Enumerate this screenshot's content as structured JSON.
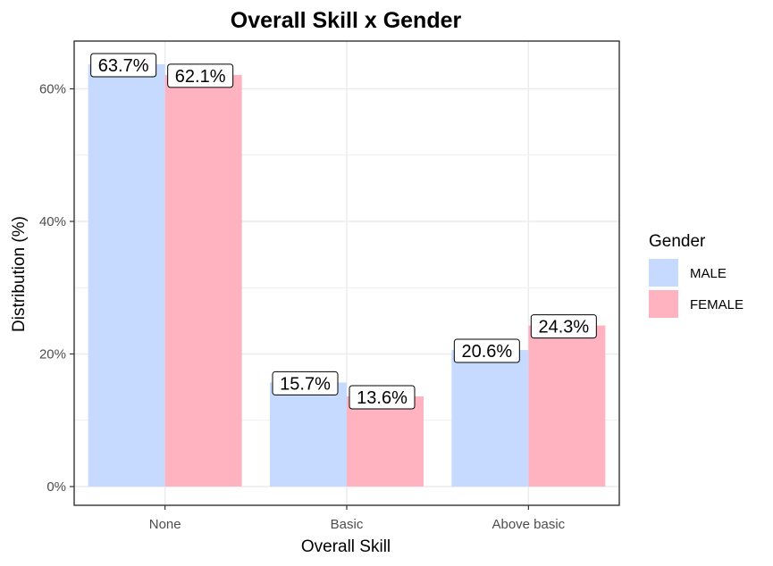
{
  "chart_data": {
    "type": "bar",
    "title": "Overall Skill x Gender",
    "xlabel": "Overall Skill",
    "ylabel": "Distribution (%)",
    "categories": [
      "None",
      "Basic",
      "Above basic"
    ],
    "ylim": [
      0,
      67
    ],
    "yticks": [
      0,
      20,
      40,
      60
    ],
    "ytick_labels": [
      "0%",
      "20%",
      "40%",
      "60%"
    ],
    "grid": true,
    "legend": {
      "title": "Gender",
      "position": "right"
    },
    "series": [
      {
        "name": "MALE",
        "color": "#c6daff",
        "values": [
          63.7,
          15.7,
          20.6
        ],
        "labels": [
          "63.7%",
          "15.7%",
          "20.6%"
        ]
      },
      {
        "name": "FEMALE",
        "color": "#ffb3c1",
        "values": [
          62.1,
          13.6,
          24.3
        ],
        "labels": [
          "62.1%",
          "13.6%",
          "24.3%"
        ]
      }
    ]
  }
}
